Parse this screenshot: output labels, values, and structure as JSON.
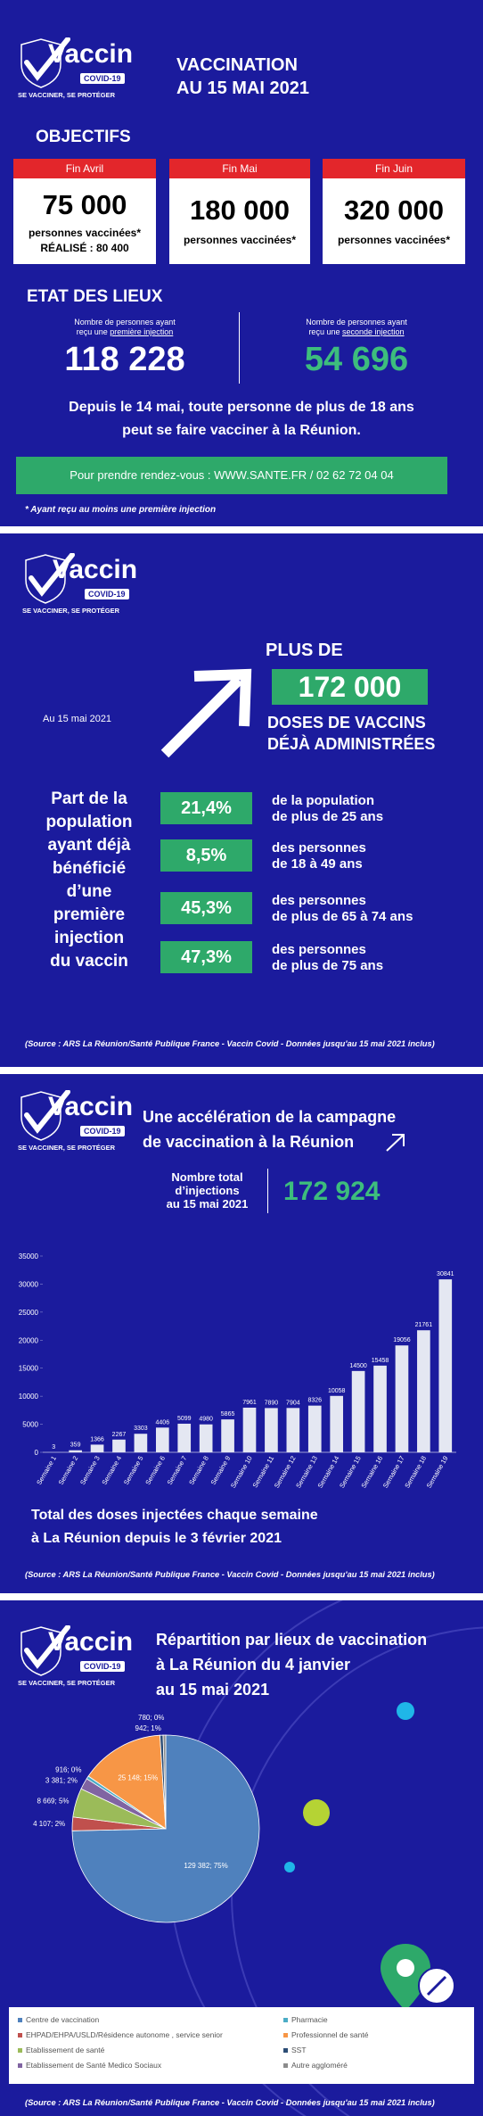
{
  "logo": {
    "name": "Vaccin",
    "badge": "COVID-19",
    "slogan": "SE VACCINER, SE PROTÉGER"
  },
  "source": "(Source :  ARS La Réunion/Santé Publique France - Vaccin Covid - Données jusqu'au 15 mai  2021 inclus)",
  "panel1": {
    "title": [
      "VACCINATION",
      "AU 15 MAI 2021"
    ],
    "objectives_title": "OBJECTIFS",
    "cards": [
      {
        "period": "Fin Avril",
        "number": "75 000",
        "caption": "personnes vaccinées*",
        "achieved": "RÉALISÉ : 80 400"
      },
      {
        "period": "Fin Mai",
        "number": "180 000",
        "caption": "personnes vaccinées*"
      },
      {
        "period": "Fin Juin",
        "number": "320 000",
        "caption": "personnes vaccinées*"
      }
    ],
    "status_title": "ETAT DES LIEUX",
    "first": {
      "caption": "Nombre de personnes ayant",
      "caption_start": "reçu une",
      "caption_underlined": "première injection",
      "number": "118 228"
    },
    "second": {
      "caption": "Nombre de personnes ayant",
      "caption_start": "reçu une",
      "caption_underlined": "seconde injection",
      "number": "54 696"
    },
    "announcement": [
      "Depuis le 14 mai, toute personne de plus de 18 ans",
      "peut se faire vacciner à la Réunion."
    ],
    "booking": "Pour prendre rendez-vous : WWW.SANTE.FR / 02 62 72 04 04",
    "footnote": "* Ayant reçu au moins une première injection"
  },
  "panel2": {
    "headline": "PLUS DE",
    "total": "172 000",
    "subtitle": [
      "DOSES DE VACCINS",
      "DÉJÀ ADMINISTRÉES"
    ],
    "date": "Au 15 mai 2021",
    "share_title": [
      "Part de la",
      "population",
      "ayant déjà",
      "bénéficié",
      "d’une",
      "première",
      "injection",
      "du vaccin"
    ],
    "rows": [
      {
        "pct": "21,4%",
        "desc": [
          "de la population",
          "de plus de 25 ans"
        ]
      },
      {
        "pct": "8,5%",
        "desc": [
          "des personnes",
          "de 18 à 49 ans"
        ]
      },
      {
        "pct": "45,3%",
        "desc": [
          "des personnes",
          "de plus de 65 à 74 ans"
        ]
      },
      {
        "pct": "47,3%",
        "desc": [
          "des personnes",
          "de plus de 75 ans"
        ]
      }
    ]
  },
  "panel3": {
    "title": [
      "Une accélération de la campagne",
      "de vaccination à la Réunion"
    ],
    "total_caption": [
      "Nombre total",
      "d’injections",
      "au 15 mai 2021"
    ],
    "total": "172 924",
    "caption": [
      "Total des doses injectées chaque semaine",
      "à La Réunion depuis le 3 février 2021"
    ]
  },
  "panel4": {
    "title": [
      "Répartition par lieux de vaccination",
      "à La Réunion du 4 janvier",
      "au 15 mai 2021"
    ]
  },
  "chart_data": [
    {
      "type": "bar",
      "categories": [
        "Semaine 1",
        "Semaine 2",
        "Semaine 3",
        "Semaine 4",
        "Semaine 5",
        "Semaine 6",
        "Semaine 7",
        "Semaine 8",
        "Semaine 9",
        "Semaine 10",
        "Semaine 11",
        "Semaine 12",
        "Semaine 13",
        "Semaine 14",
        "Semaine 15",
        "Semaine 16",
        "Semaine 17",
        "Semaine 18",
        "Semaine 19"
      ],
      "values": [
        3,
        359,
        1366,
        2267,
        3303,
        4406,
        5099,
        4980,
        5865,
        7961,
        7890,
        7904,
        8326,
        10058,
        14500,
        15458,
        19056,
        21761,
        30841
      ],
      "color": "#e4e7f2",
      "ylim": [
        0,
        35000
      ],
      "yticks": [
        0,
        5000,
        10000,
        15000,
        20000,
        25000,
        30000,
        35000
      ],
      "grid": false
    },
    {
      "type": "pie",
      "categories": [
        "Centre de vaccination",
        "EHPAD/EHPA/USLD/Résidence autonome , service senior",
        "Etablissement de santé",
        "Etablissement de Santé Medico Sociaux",
        "Pharmacie",
        "Professionnel de santé",
        "SST",
        "Autre aggloméré"
      ],
      "values": [
        129382,
        4107,
        8669,
        3381,
        916,
        25148,
        942,
        780
      ],
      "value_labels": [
        "129 382; 75%",
        "4 107; 2%",
        "8 669; 5%",
        "3 381; 2%",
        "916; 0%",
        "25 148; 15%",
        "942; 1%",
        "780; 0%"
      ],
      "colors": [
        "#4f81bd",
        "#c0504d",
        "#9bbb59",
        "#8064a2",
        "#4bacc6",
        "#f79646",
        "#2c4d75",
        "#8c8c8c"
      ],
      "legend": "bottom"
    }
  ]
}
